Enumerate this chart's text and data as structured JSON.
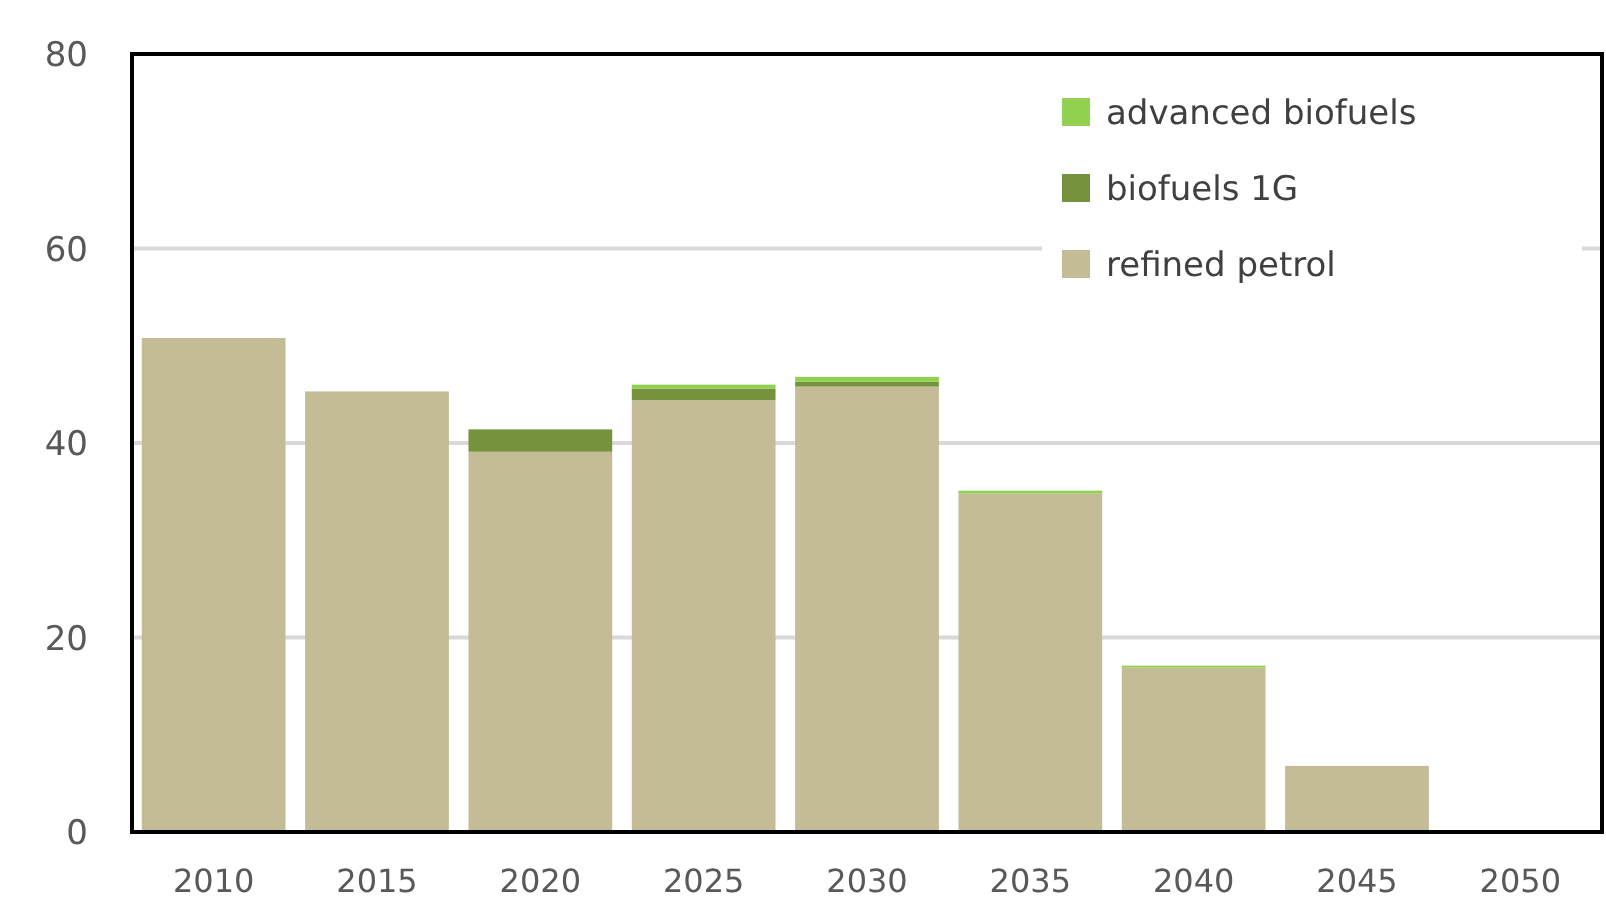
{
  "chart_data": {
    "type": "bar",
    "stacked": true,
    "categories": [
      "2010",
      "2015",
      "2020",
      "2025",
      "2030",
      "2035",
      "2040",
      "2045",
      "2050"
    ],
    "series": [
      {
        "name": "refined petrol",
        "color": "#c4bc97",
        "values": [
          50.8,
          45.3,
          39.1,
          44.4,
          45.8,
          34.8,
          16.9,
          6.8,
          0
        ]
      },
      {
        "name": "biofuels 1G",
        "color": "#76923c",
        "values": [
          0,
          0,
          2.3,
          1.2,
          0.5,
          0,
          0,
          0,
          0
        ]
      },
      {
        "name": "advanced biofuels",
        "color": "#92d050",
        "values": [
          0,
          0,
          0,
          0.4,
          0.5,
          0.3,
          0.2,
          0,
          0
        ]
      }
    ],
    "ylim": [
      0,
      80
    ],
    "yticks": [
      0,
      20,
      40,
      60,
      80
    ],
    "grid": "y",
    "legend": "top right"
  }
}
